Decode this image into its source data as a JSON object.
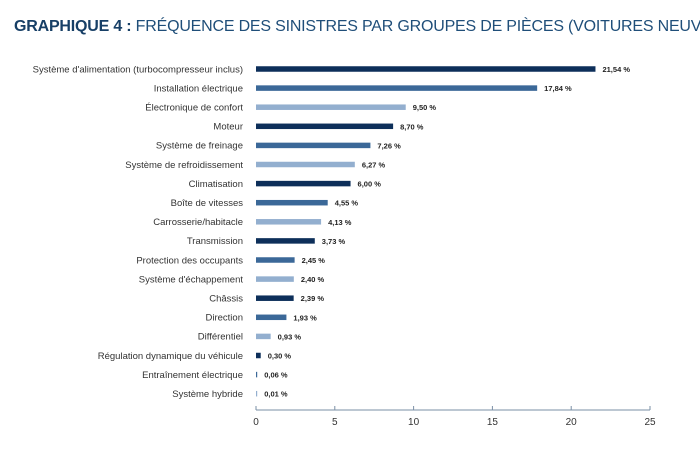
{
  "header": {
    "lead": "GRAPHIQUE 4 :",
    "title": "FRÉQUENCE DES SINISTRES PAR GROUPES DE PIÈCES (VOITURES NEUVES)"
  },
  "colors": {
    "dark": "#0d2f5a",
    "medium": "#3b6898",
    "light": "#93afcf",
    "axis": "#7a8fa6"
  },
  "chart_data": {
    "type": "bar",
    "orientation": "horizontal",
    "title": "FRÉQUENCE DES SINISTRES PAR GROUPES DE PIÈCES (VOITURES NEUVES)",
    "xlim": [
      0,
      25
    ],
    "xticks": [
      0,
      5,
      10,
      15,
      20,
      25
    ],
    "grid": false,
    "categories": [
      "Système d'alimentation (turbocompresseur inclus)",
      "Installation électrique",
      "Électronique de confort",
      "Moteur",
      "Système de freinage",
      "Système de refroidissement",
      "Climatisation",
      "Boîte de vitesses",
      "Carrosserie/habitacle",
      "Transmission",
      "Protection des occupants",
      "Système d'échappement",
      "Châssis",
      "Direction",
      "Différentiel",
      "Régulation dynamique du véhicule",
      "Entraînement électrique",
      "Système hybride"
    ],
    "values": [
      21.54,
      17.84,
      9.5,
      8.7,
      7.26,
      6.27,
      6.0,
      4.55,
      4.13,
      3.73,
      2.45,
      2.4,
      2.39,
      1.93,
      0.93,
      0.3,
      0.06,
      0.01
    ],
    "value_labels": [
      "21,54 %",
      "17,84 %",
      "9,50 %",
      "8,70 %",
      "7,26 %",
      "6,27 %",
      "6,00 %",
      "4,55 %",
      "4,13 %",
      "3,73 %",
      "2,45 %",
      "2,40 %",
      "2,39 %",
      "1,93 %",
      "0,93 %",
      "0,30 %",
      "0,06 %",
      "0,01 %"
    ],
    "bar_colors": [
      "dark",
      "medium",
      "light",
      "dark",
      "medium",
      "light",
      "dark",
      "medium",
      "light",
      "dark",
      "medium",
      "light",
      "dark",
      "medium",
      "light",
      "dark",
      "medium",
      "light"
    ]
  }
}
